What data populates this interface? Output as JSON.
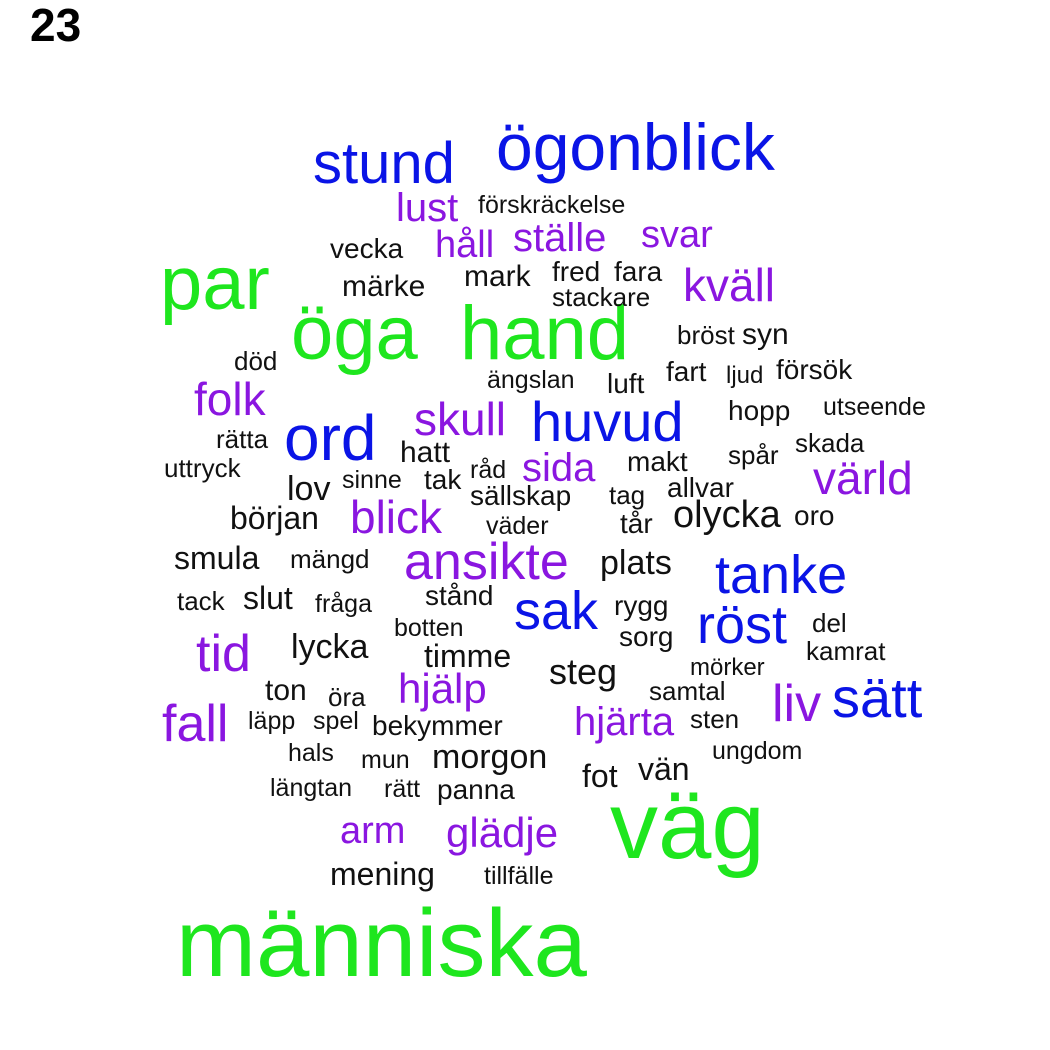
{
  "page_label": "23",
  "colors": {
    "green": "#1ee61e",
    "blue": "#0a14e6",
    "purple": "#8a16e0",
    "black": "#111111"
  },
  "words": [
    "människa",
    "väg",
    "öga",
    "hand",
    "par",
    "ögonblick",
    "stund",
    "ord",
    "huvud",
    "tanke",
    "sak",
    "röst",
    "sätt",
    "lust",
    "håll",
    "ställe",
    "svar",
    "kväll",
    "folk",
    "skull",
    "sida",
    "värld",
    "blick",
    "ansikte",
    "tid",
    "hjälp",
    "fall",
    "hjärta",
    "liv",
    "arm",
    "glädje",
    "förskräckelse",
    "vecka",
    "märke",
    "mark",
    "fred",
    "fara",
    "stackare",
    "bröst",
    "syn",
    "död",
    "fart",
    "ljud",
    "försök",
    "ängslan",
    "luft",
    "hopp",
    "utseende",
    "rätta",
    "hatt",
    "skada",
    "spår",
    "uttryck",
    "råd",
    "makt",
    "sinne",
    "tak",
    "lov",
    "sällskap",
    "tag",
    "allvar",
    "början",
    "väder",
    "tår",
    "olycka",
    "oro",
    "smula",
    "mängd",
    "plats",
    "tack",
    "slut",
    "fråga",
    "stånd",
    "rygg",
    "botten",
    "sorg",
    "del",
    "lycka",
    "timme",
    "kamrat",
    "steg",
    "mörker",
    "ton",
    "öra",
    "samtal",
    "läpp",
    "spel",
    "bekymmer",
    "sten",
    "hals",
    "mun",
    "morgon",
    "ungdom",
    "vän",
    "fot",
    "längtan",
    "rätt",
    "panna",
    "mening",
    "tillfälle"
  ]
}
